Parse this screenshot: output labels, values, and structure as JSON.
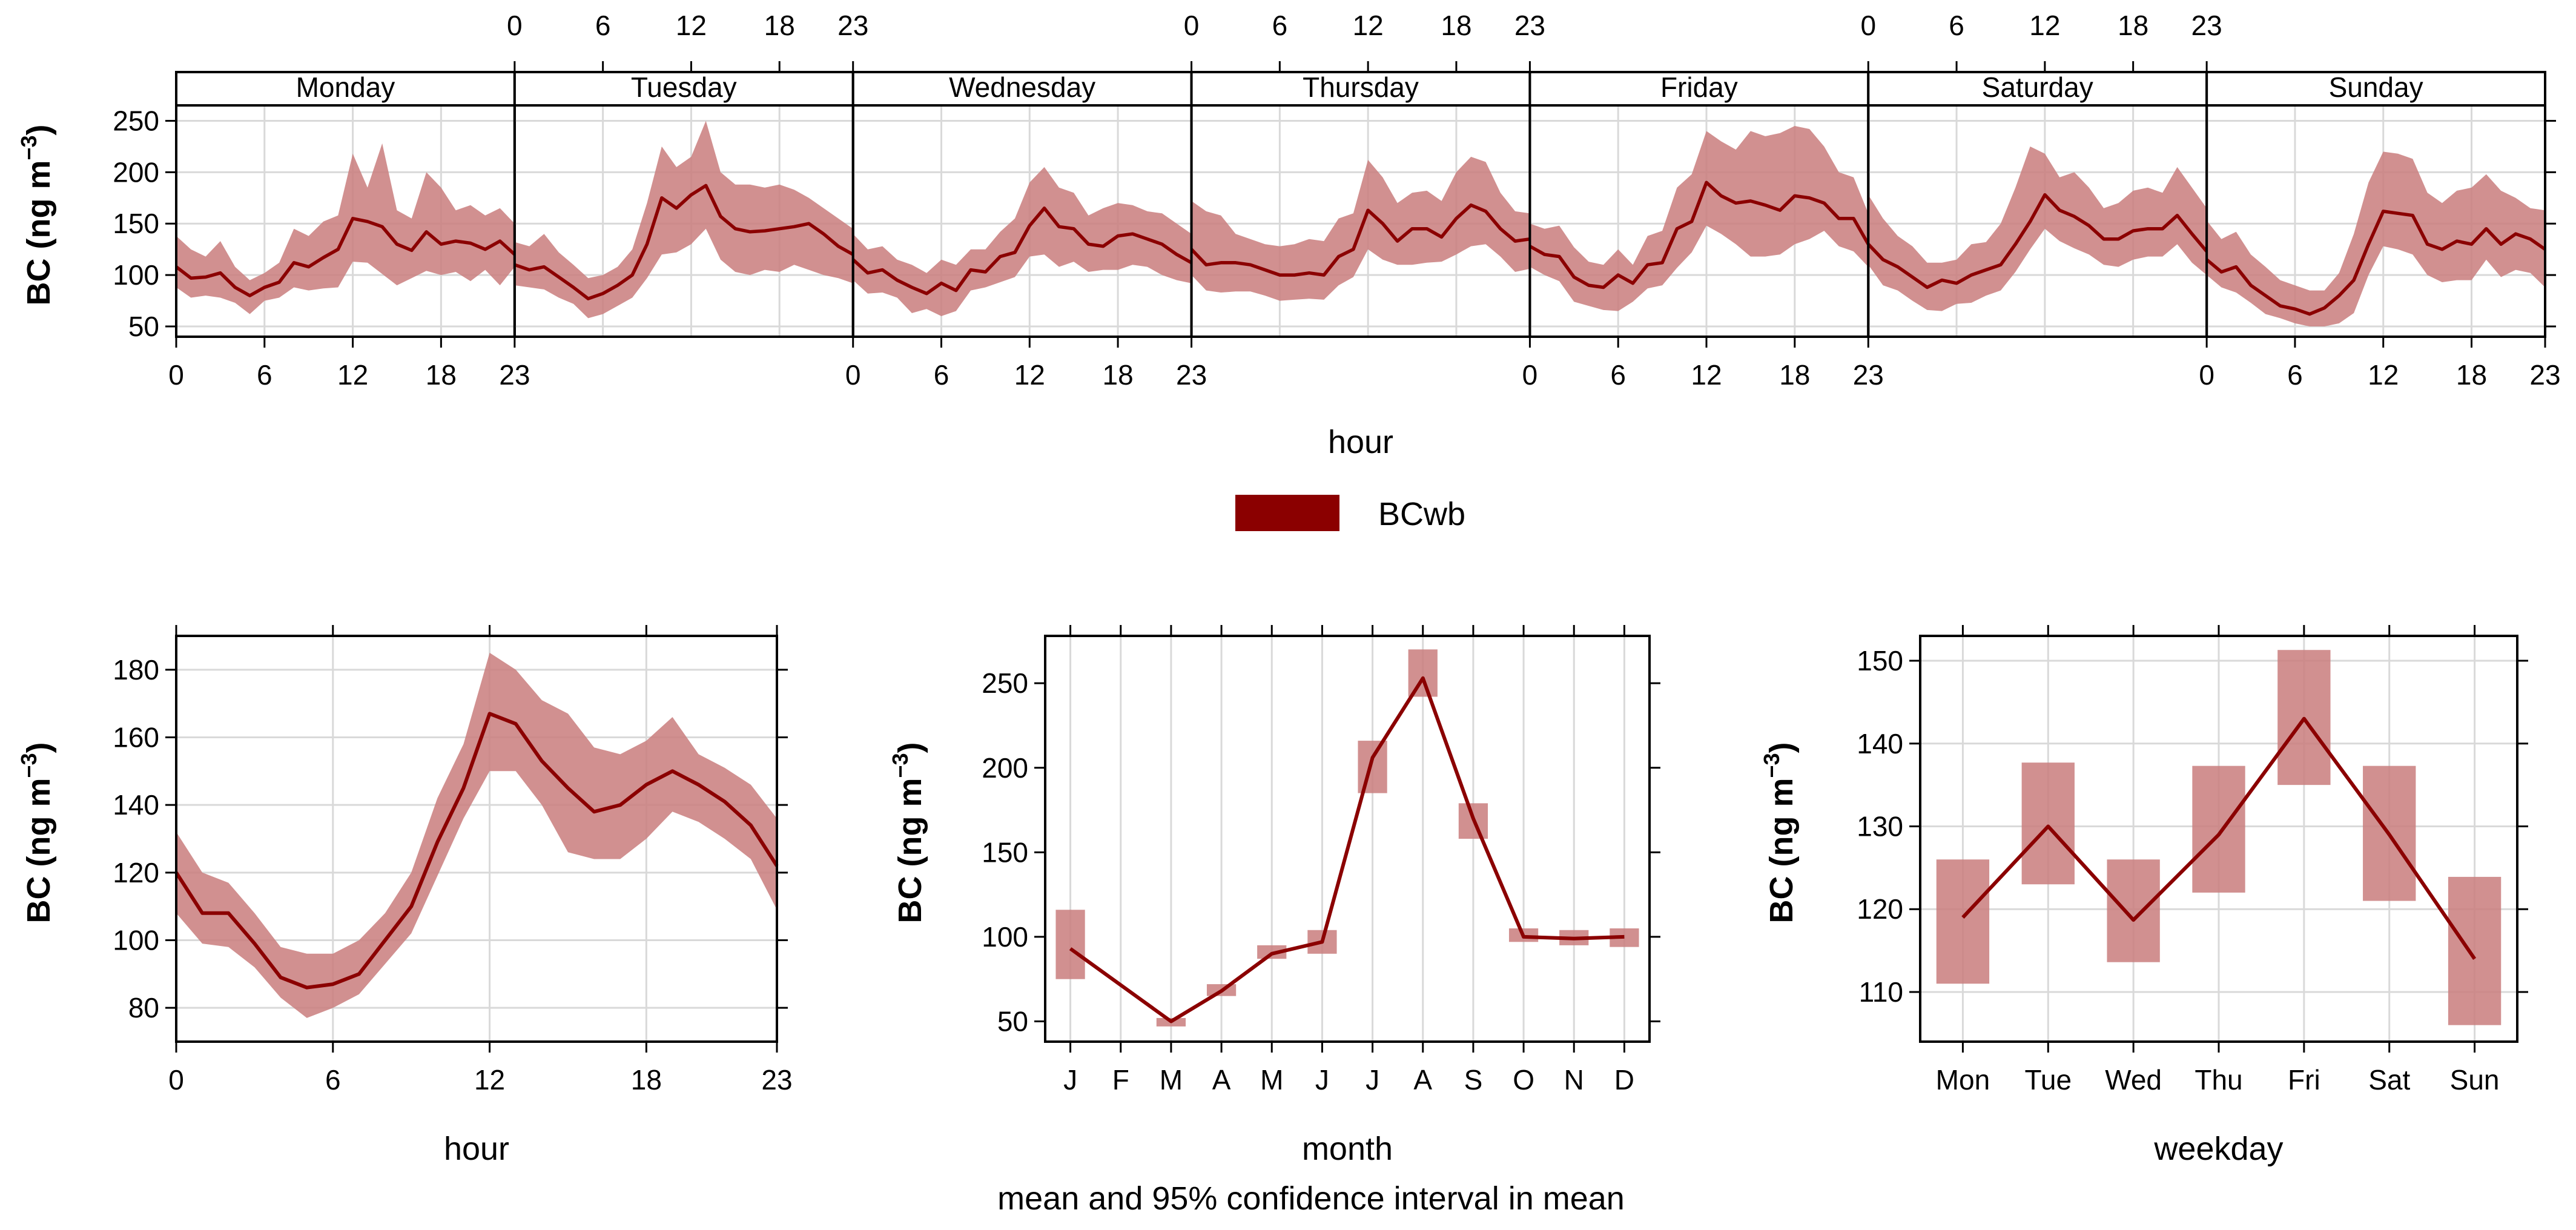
{
  "colors": {
    "line": "#8b0000",
    "band": "#c97d7d",
    "legend": "#8b0000"
  },
  "legend": {
    "label": "BCwb"
  },
  "footer": "mean and 95% confidence interval in mean",
  "chart_data": [
    {
      "id": "weekly",
      "type": "line",
      "title": "",
      "xlabel": "hour",
      "ylabel": "BC",
      "units": {
        "pre": "(ng m",
        "sup": "−3",
        "post": ")"
      },
      "ylim": [
        40,
        265
      ],
      "yticks": [
        50,
        100,
        150,
        200,
        250
      ],
      "xlim": [
        0,
        23
      ],
      "xticks": [
        0,
        6,
        12,
        18,
        23
      ],
      "panels": [
        "Monday",
        "Tuesday",
        "Wednesday",
        "Thursday",
        "Friday",
        "Saturday",
        "Sunday"
      ],
      "series": [
        {
          "name": "BCwb",
          "panels": [
            {
              "mean": [
                108,
                97,
                98,
                102,
                88,
                80,
                88,
                93,
                112,
                108,
                117,
                125,
                155,
                152,
                147,
                130,
                124,
                142,
                130,
                133,
                131,
                125,
                133,
                120
              ],
              "lower": [
                88,
                78,
                80,
                78,
                73,
                62,
                75,
                78,
                88,
                85,
                87,
                88,
                113,
                112,
                101,
                90,
                97,
                104,
                100,
                103,
                94,
                105,
                90,
                108
              ],
              "upper": [
                138,
                125,
                118,
                133,
                108,
                95,
                102,
                112,
                145,
                138,
                152,
                158,
                218,
                185,
                228,
                163,
                155,
                200,
                185,
                163,
                168,
                158,
                165,
                150
              ]
            },
            {
              "mean": [
                110,
                105,
                108,
                98,
                88,
                77,
                82,
                90,
                100,
                130,
                175,
                165,
                178,
                187,
                157,
                145,
                142,
                143,
                145,
                147,
                150,
                140,
                128,
                120
              ],
              "lower": [
                90,
                88,
                86,
                78,
                72,
                58,
                62,
                70,
                78,
                97,
                120,
                122,
                130,
                145,
                115,
                103,
                100,
                105,
                103,
                110,
                105,
                100,
                97,
                92
              ],
              "upper": [
                132,
                128,
                140,
                122,
                110,
                97,
                100,
                108,
                125,
                170,
                225,
                205,
                215,
                250,
                200,
                188,
                188,
                185,
                188,
                183,
                175,
                165,
                155,
                145
              ]
            },
            {
              "mean": [
                115,
                102,
                105,
                95,
                88,
                82,
                92,
                85,
                105,
                103,
                118,
                122,
                148,
                165,
                147,
                145,
                130,
                128,
                138,
                140,
                135,
                130,
                120,
                112
              ],
              "lower": [
                95,
                82,
                83,
                78,
                63,
                67,
                60,
                65,
                85,
                88,
                93,
                98,
                118,
                120,
                108,
                113,
                103,
                105,
                105,
                110,
                108,
                100,
                95,
                92
              ],
              "upper": [
                140,
                125,
                128,
                115,
                110,
                102,
                115,
                110,
                125,
                125,
                142,
                155,
                190,
                205,
                185,
                180,
                158,
                165,
                170,
                168,
                162,
                160,
                150,
                140
              ]
            },
            {
              "mean": [
                125,
                110,
                112,
                112,
                110,
                105,
                100,
                100,
                102,
                100,
                118,
                125,
                163,
                150,
                133,
                145,
                145,
                137,
                155,
                168,
                162,
                145,
                133,
                135
              ],
              "lower": [
                100,
                85,
                83,
                84,
                84,
                80,
                75,
                76,
                77,
                76,
                90,
                98,
                125,
                115,
                110,
                110,
                112,
                113,
                120,
                128,
                130,
                118,
                103,
                106
              ],
              "upper": [
                172,
                162,
                158,
                140,
                135,
                130,
                128,
                130,
                135,
                133,
                155,
                160,
                212,
                195,
                170,
                180,
                182,
                172,
                200,
                215,
                210,
                180,
                162,
                160
              ]
            },
            {
              "mean": [
                128,
                120,
                118,
                98,
                90,
                88,
                100,
                92,
                110,
                112,
                145,
                152,
                190,
                177,
                170,
                172,
                168,
                163,
                177,
                175,
                170,
                155,
                155,
                130
              ],
              "lower": [
                108,
                100,
                94,
                74,
                70,
                66,
                65,
                74,
                87,
                90,
                107,
                122,
                148,
                140,
                130,
                118,
                118,
                120,
                130,
                135,
                143,
                128,
                123,
                108
              ],
              "upper": [
                150,
                145,
                148,
                127,
                113,
                110,
                125,
                110,
                138,
                143,
                185,
                198,
                240,
                230,
                222,
                240,
                235,
                238,
                245,
                242,
                225,
                200,
                195,
                160
              ]
            },
            {
              "mean": [
                130,
                115,
                108,
                98,
                88,
                95,
                92,
                100,
                105,
                110,
                130,
                152,
                178,
                163,
                157,
                148,
                135,
                135,
                143,
                145,
                145,
                158,
                140,
                123
              ],
              "lower": [
                110,
                90,
                85,
                75,
                66,
                65,
                72,
                73,
                80,
                85,
                103,
                125,
                145,
                133,
                126,
                120,
                110,
                108,
                115,
                118,
                118,
                130,
                112,
                100
              ],
              "upper": [
                178,
                155,
                138,
                128,
                112,
                112,
                115,
                130,
                132,
                150,
                185,
                225,
                218,
                195,
                200,
                185,
                165,
                170,
                182,
                185,
                180,
                205,
                185,
                165
              ]
            },
            {
              "mean": [
                115,
                103,
                108,
                90,
                80,
                70,
                67,
                62,
                68,
                80,
                95,
                130,
                162,
                160,
                158,
                130,
                125,
                133,
                130,
                145,
                130,
                140,
                135,
                125
              ],
              "lower": [
                100,
                88,
                83,
                73,
                62,
                58,
                53,
                50,
                50,
                53,
                63,
                100,
                128,
                125,
                120,
                100,
                93,
                95,
                95,
                115,
                98,
                105,
                102,
                88
              ],
              "upper": [
                153,
                135,
                142,
                120,
                108,
                95,
                90,
                85,
                85,
                102,
                140,
                190,
                220,
                218,
                213,
                180,
                170,
                182,
                185,
                198,
                182,
                175,
                165,
                163
              ]
            }
          ]
        }
      ]
    },
    {
      "id": "hour",
      "type": "line",
      "xlabel": "hour",
      "ylabel": "BC",
      "units": {
        "pre": "(ng m",
        "sup": "−3",
        "post": ")"
      },
      "ylim": [
        70,
        190
      ],
      "yticks": [
        80,
        100,
        120,
        140,
        160,
        180
      ],
      "xlim": [
        0,
        23
      ],
      "xticks": [
        0,
        6,
        12,
        18,
        23
      ],
      "series": [
        {
          "name": "BCwb",
          "mean": [
            120,
            108,
            108,
            99,
            89,
            86,
            87,
            90,
            100,
            110,
            129,
            145,
            167,
            164,
            153,
            145,
            138,
            140,
            146,
            150,
            146,
            141,
            134,
            122
          ],
          "lower": [
            108,
            99,
            98,
            92,
            83,
            77,
            80,
            84,
            93,
            102,
            119,
            136,
            150,
            150,
            140,
            126,
            124,
            124,
            130,
            138,
            135,
            130,
            124,
            109
          ],
          "upper": [
            132,
            120,
            117,
            108,
            98,
            96,
            96,
            100,
            108,
            120,
            142,
            158,
            185,
            180,
            171,
            167,
            157,
            155,
            159,
            166,
            155,
            151,
            146,
            136
          ]
        }
      ]
    },
    {
      "id": "month",
      "type": "line",
      "xlabel": "month",
      "ylabel": "BC",
      "units": {
        "pre": "(ng m",
        "sup": "−3",
        "post": ")"
      },
      "ylim": [
        38,
        278
      ],
      "yticks": [
        50,
        100,
        150,
        200,
        250
      ],
      "categories": [
        "J",
        "F",
        "M",
        "A",
        "M",
        "J",
        "J",
        "A",
        "S",
        "O",
        "N",
        "D"
      ],
      "series": [
        {
          "name": "BCwb",
          "mean": [
            93,
            null,
            50,
            68,
            90,
            97,
            206,
            253,
            170,
            100,
            99,
            100
          ],
          "lower": [
            75,
            null,
            47,
            65,
            87,
            90,
            185,
            242,
            158,
            97,
            95,
            94
          ],
          "upper": [
            116,
            null,
            52,
            72,
            95,
            104,
            216,
            270,
            179,
            105,
            104,
            105
          ]
        }
      ]
    },
    {
      "id": "weekday",
      "type": "line",
      "xlabel": "weekday",
      "ylabel": "BC",
      "units": {
        "pre": "(ng m",
        "sup": "−3",
        "post": ")"
      },
      "ylim": [
        104,
        153
      ],
      "yticks": [
        110,
        120,
        130,
        140,
        150
      ],
      "categories": [
        "Mon",
        "Tue",
        "Wed",
        "Thu",
        "Fri",
        "Sat",
        "Sun"
      ],
      "series": [
        {
          "name": "BCwb",
          "mean": [
            119,
            130,
            118.7,
            129,
            143,
            129,
            114
          ],
          "lower": [
            111,
            123,
            113.6,
            122,
            135,
            121,
            106
          ],
          "upper": [
            126,
            137.7,
            126,
            137.3,
            151.3,
            137.3,
            123.9
          ]
        }
      ]
    }
  ]
}
